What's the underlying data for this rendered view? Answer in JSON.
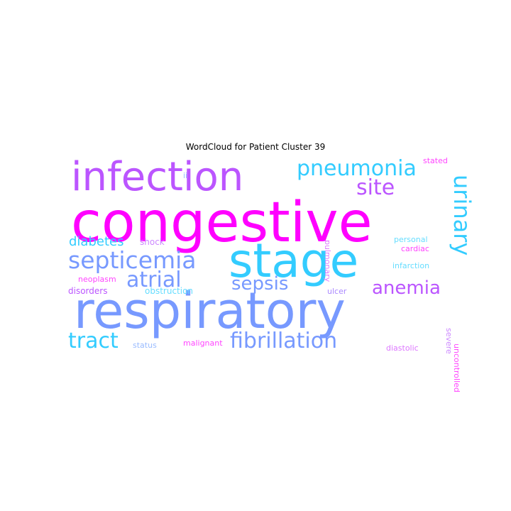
{
  "chart_data": {
    "type": "wordcloud",
    "title": "WordCloud for Patient Cluster 39",
    "words": [
      {
        "text": "congestive",
        "color": "#ff00ff"
      },
      {
        "text": "respiratory",
        "color": "#7799ff"
      },
      {
        "text": "stage",
        "color": "#33ccff"
      },
      {
        "text": "infection",
        "color": "#bb55ff"
      },
      {
        "text": "pneumonia",
        "color": "#33ccff"
      },
      {
        "text": "septicemia",
        "color": "#7799ff"
      },
      {
        "text": "fibrillation",
        "color": "#7799ff"
      },
      {
        "text": "tract",
        "color": "#33ccff"
      },
      {
        "text": "atrial",
        "color": "#7799ff"
      },
      {
        "text": "urinary",
        "color": "#33ccff"
      },
      {
        "text": "site",
        "color": "#bb55ff"
      },
      {
        "text": "anemia",
        "color": "#bb55ff"
      },
      {
        "text": "sepsis",
        "color": "#7799ff"
      },
      {
        "text": "diabetes",
        "color": "#33ccff"
      },
      {
        "text": "shock",
        "color": "#cc88ff"
      },
      {
        "text": "neoplasm",
        "color": "#ff44ff"
      },
      {
        "text": "disorders",
        "color": "#bb55ff"
      },
      {
        "text": "obstruction",
        "color": "#66ddff"
      },
      {
        "text": "status",
        "color": "#99bbff"
      },
      {
        "text": "malignant",
        "color": "#ff44ff"
      },
      {
        "text": "ulcer",
        "color": "#aa88ff"
      },
      {
        "text": "diastolic",
        "color": "#dd77ff"
      },
      {
        "text": "pulmonary",
        "color": "#dd77ff"
      },
      {
        "text": "personal",
        "color": "#66ddff"
      },
      {
        "text": "cardiac",
        "color": "#ff44ff"
      },
      {
        "text": "infarction",
        "color": "#66ddff"
      },
      {
        "text": "severe",
        "color": "#cc88ff"
      },
      {
        "text": "uncontrolled",
        "color": "#ff44ff"
      },
      {
        "text": "stated",
        "color": "#ff44ff"
      },
      {
        "text": "ii",
        "color": "#99bbff"
      }
    ]
  }
}
